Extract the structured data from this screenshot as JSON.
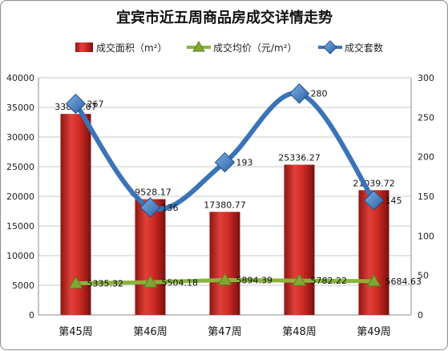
{
  "chart_data": {
    "type": "bar",
    "title": "宜宾市近五周商品房成交详情走势",
    "categories": [
      "第45周",
      "第46周",
      "第47周",
      "第48周",
      "第49周"
    ],
    "series": [
      {
        "name": "成交面积（m²）",
        "type": "bar",
        "axis": "left",
        "color": "#c8201d",
        "values": [
          33897.07,
          19528.17,
          17380.77,
          25336.27,
          21039.72
        ],
        "labels": [
          "33897.07",
          "19528.17",
          "17380.77",
          "25336.27",
          "21039.72"
        ]
      },
      {
        "name": "成交均价（元/m²）",
        "type": "line",
        "axis": "left",
        "color": "#8bb33a",
        "values": [
          5335.32,
          5504.18,
          5894.39,
          5782.22,
          5684.63
        ],
        "labels": [
          "5335.32",
          "5504.18",
          "5894.39",
          "5782.22",
          "5684.63"
        ]
      },
      {
        "name": "成交套数",
        "type": "smooth-line",
        "axis": "right",
        "color": "#3a73b8",
        "values": [
          267,
          136,
          193,
          280,
          145
        ],
        "labels": [
          "267",
          "136",
          "193",
          "280",
          "145"
        ]
      }
    ],
    "y_left": {
      "min": 0,
      "max": 40000,
      "step": 5000,
      "ticks": [
        "0",
        "5000",
        "10000",
        "15000",
        "20000",
        "25000",
        "30000",
        "35000",
        "40000"
      ]
    },
    "y_right": {
      "min": 0,
      "max": 300,
      "step": 50,
      "ticks": [
        "0",
        "50",
        "100",
        "150",
        "200",
        "250",
        "300"
      ]
    },
    "grid": true,
    "legend_position": "top"
  }
}
